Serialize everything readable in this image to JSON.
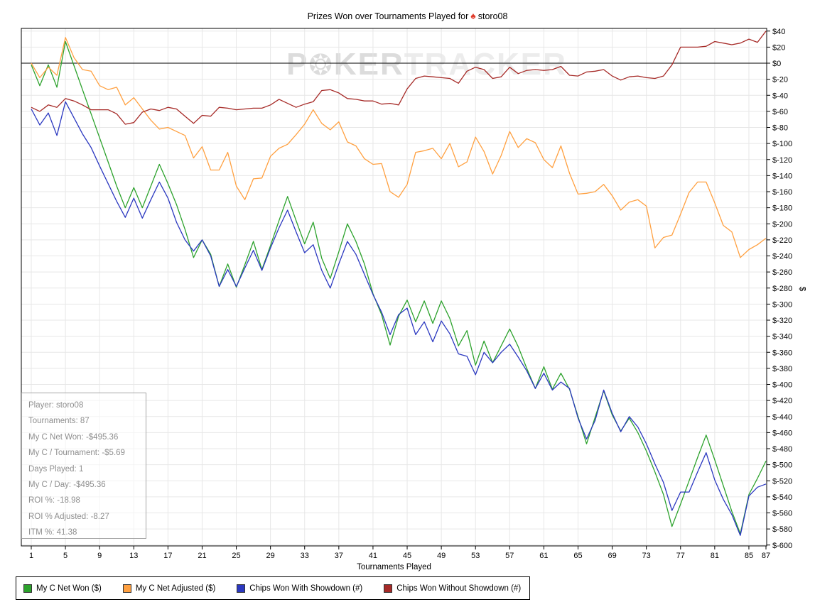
{
  "title": {
    "prefix": "Prizes Won over Tournaments Played for",
    "player": "storo08",
    "icon": "red-spade"
  },
  "watermark": {
    "part1": "P",
    "chip": "❂",
    "part2": "KER",
    "part3": "TRACKER"
  },
  "stats_box": {
    "lines": [
      "Player: storo08",
      "Tournaments: 87",
      "My C Net Won: -$495.36",
      "My C / Tournament: -$5.69",
      "Days Played: 1",
      "My C / Day: -$495.36",
      "ROI %: -18.98",
      "ROI % Adjusted: -8.27",
      "ITM %: 41.38"
    ]
  },
  "legend": {
    "items": [
      {
        "label": "My C Net Won ($)",
        "color": "#2ca22c"
      },
      {
        "label": "My C Net Adjusted ($)",
        "color": "#ffa040"
      },
      {
        "label": "Chips Won With Showdown (#)",
        "color": "#2b38c0"
      },
      {
        "label": "Chips Won Without Showdown (#)",
        "color": "#a62a27"
      }
    ]
  },
  "chart_data": {
    "type": "line",
    "title": "Prizes Won over Tournaments Played for storo08",
    "xlabel": "Tournaments Played",
    "ylabel": "$",
    "xlim": [
      1,
      87
    ],
    "ylim": [
      -600,
      40
    ],
    "y_tick_step": 20,
    "x_ticks": [
      1,
      5,
      9,
      13,
      17,
      21,
      25,
      29,
      33,
      37,
      41,
      45,
      49,
      53,
      57,
      61,
      65,
      69,
      73,
      77,
      81,
      85,
      87
    ],
    "grid": true,
    "zero_line": true,
    "legend_position": "bottom",
    "series": [
      {
        "name": "My C Net Won ($)",
        "key": "my-c-net-won",
        "color": "#2ca22c",
        "values": [
          -2,
          -28,
          -2,
          -30,
          27,
          -3,
          -33,
          -63,
          -93,
          -123,
          -153,
          -180,
          -155,
          -180,
          -153,
          -126,
          -150,
          -176,
          -207,
          -242,
          -220,
          -238,
          -278,
          -250,
          -279,
          -251,
          -222,
          -257,
          -227,
          -196,
          -166,
          -196,
          -225,
          -198,
          -243,
          -268,
          -235,
          -200,
          -222,
          -250,
          -287,
          -313,
          -351,
          -315,
          -295,
          -322,
          -296,
          -324,
          -296,
          -318,
          -352,
          -333,
          -376,
          -346,
          -373,
          -352,
          -331,
          -353,
          -380,
          -405,
          -378,
          -406,
          -386,
          -406,
          -440,
          -474,
          -441,
          -408,
          -438,
          -458,
          -442,
          -460,
          -483,
          -509,
          -537,
          -577,
          -549,
          -520,
          -491,
          -463,
          -494,
          -526,
          -558,
          -586,
          -537,
          -517,
          -495.36
        ]
      },
      {
        "name": "My C Net Adjusted ($)",
        "key": "my-c-net-adjusted",
        "color": "#ffa040",
        "values": [
          0,
          -18,
          -5,
          -15,
          32,
          7,
          -8,
          -10,
          -28,
          -33,
          -30,
          -52,
          -43,
          -57,
          -71,
          -82,
          -80,
          -85,
          -90,
          -118,
          -104,
          -133,
          -133,
          -111,
          -153,
          -170,
          -144,
          -143,
          -116,
          -106,
          -101,
          -89,
          -76,
          -58,
          -75,
          -83,
          -73,
          -98,
          -103,
          -119,
          -126,
          -125,
          -160,
          -167,
          -151,
          -111,
          -109,
          -106,
          -119,
          -100,
          -129,
          -123,
          -92,
          -110,
          -138,
          -115,
          -85,
          -105,
          -94,
          -99,
          -120,
          -130,
          -103,
          -137,
          -163,
          -162,
          -160,
          -151,
          -165,
          -183,
          -173,
          -170,
          -178,
          -230,
          -217,
          -214,
          -188,
          -161,
          -148,
          -148,
          -174,
          -202,
          -210,
          -242,
          -232,
          -226,
          -218
        ]
      },
      {
        "name": "Chips Won With Showdown (#)",
        "key": "chips-won-with-showdown",
        "color": "#2b38c0",
        "values": [
          -57,
          -77,
          -62,
          -90,
          -48,
          -68,
          -88,
          -105,
          -128,
          -150,
          -172,
          -192,
          -168,
          -193,
          -170,
          -148,
          -168,
          -198,
          -220,
          -234,
          -220,
          -240,
          -278,
          -257,
          -278,
          -255,
          -233,
          -258,
          -230,
          -205,
          -183,
          -210,
          -236,
          -226,
          -258,
          -280,
          -250,
          -222,
          -238,
          -263,
          -288,
          -310,
          -338,
          -313,
          -305,
          -338,
          -322,
          -347,
          -321,
          -337,
          -362,
          -365,
          -388,
          -360,
          -373,
          -360,
          -350,
          -366,
          -383,
          -405,
          -386,
          -407,
          -397,
          -405,
          -442,
          -468,
          -445,
          -407,
          -436,
          -459,
          -440,
          -453,
          -474,
          -499,
          -522,
          -557,
          -534,
          -534,
          -509,
          -485,
          -519,
          -543,
          -562,
          -588,
          -539,
          -528,
          -524
        ]
      },
      {
        "name": "Chips Won Without Showdown (#)",
        "key": "chips-won-without-showdown",
        "color": "#a62a27",
        "values": [
          -55,
          -60,
          -52,
          -55,
          -44,
          -47,
          -52,
          -58,
          -58,
          -58,
          -63,
          -76,
          -74,
          -61,
          -57,
          -59,
          -55,
          -57,
          -66,
          -75,
          -65,
          -66,
          -55,
          -56,
          -58,
          -57,
          -56,
          -56,
          -52,
          -45,
          -50,
          -55,
          -51,
          -48,
          -34,
          -33,
          -37,
          -44,
          -45,
          -47,
          -47,
          -51,
          -50,
          -52,
          -32,
          -19,
          -16,
          -17,
          -18,
          -19,
          -25,
          -10,
          -5,
          -8,
          -19,
          -17,
          -5,
          -13,
          -9,
          -8,
          -9,
          -8,
          -4,
          -15,
          -16,
          -11,
          -10,
          -8,
          -16,
          -21,
          -17,
          -16,
          -18,
          -19,
          -16,
          -2,
          20,
          20,
          20,
          21,
          27,
          25,
          23,
          25,
          30,
          26,
          40
        ]
      }
    ]
  },
  "colors": {
    "grid": "#e7e7e7",
    "plot_border": "#000000",
    "zero_line": "#000000",
    "axis_text": "#000000",
    "stats_text": "#8e8e8e"
  }
}
